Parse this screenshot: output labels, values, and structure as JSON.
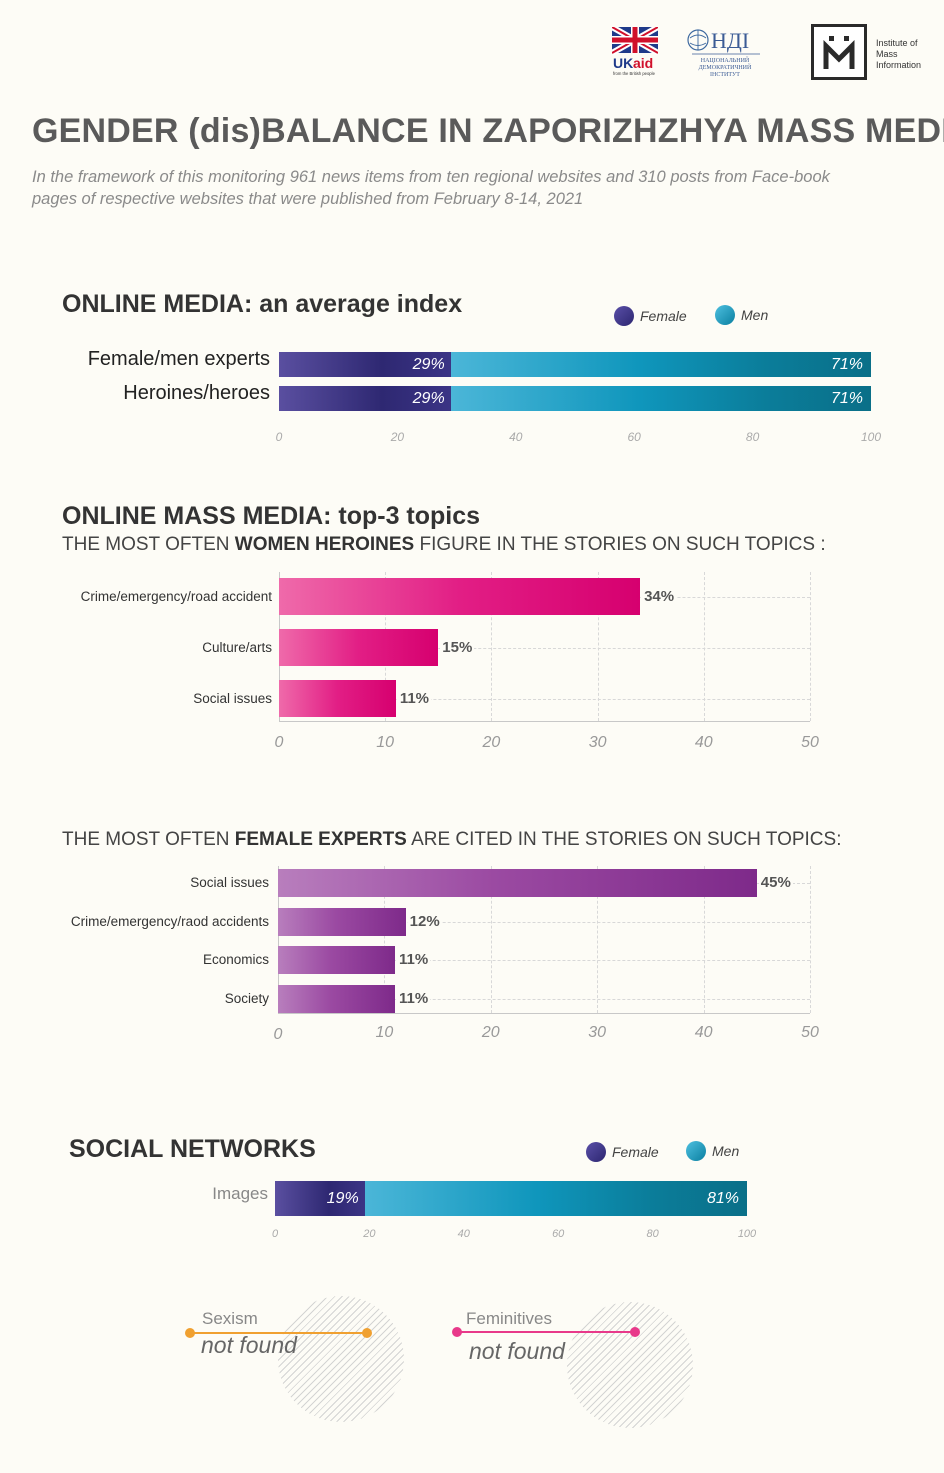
{
  "header": {
    "logo_ukaid_text": "UKaid",
    "logo_ukaid_sub": "from the British people",
    "logo_ndi_text": "НДІ",
    "logo_ndi_sub": "НАЦІОНАЛЬНИЙ ДЕМОКРАТИЧНИЙ ІНСТИТУТ",
    "logo_imi_text": "Institute of Mass Information"
  },
  "title": "GENDER (dis)BALANCE IN ZAPORIZHZHYA MASS MEDIA",
  "intro": "In the framework of this monitoring 961 news items from ten regional websites and 310 posts from Face-book pages of respective websites that were published from February 8-14, 2021",
  "colors": {
    "female": "#2e2872",
    "men": "#0f96bc",
    "pink": "#e21e85",
    "purple": "#8e3b97",
    "sexism_line": "#f0a030",
    "feminitives_line": "#e8398a"
  },
  "legend": {
    "female": "Female",
    "men": "Men"
  },
  "chart_data": [
    {
      "type": "bar",
      "orientation": "horizontal-stacked",
      "title": "ONLINE MEDIA: an average index",
      "categories": [
        "Female/men experts",
        "Heroines/heroes"
      ],
      "series": [
        {
          "name": "Female",
          "values": [
            29,
            29
          ],
          "labels": [
            "29%",
            "29%"
          ]
        },
        {
          "name": "Men",
          "values": [
            71,
            71
          ],
          "labels": [
            "71%",
            "71%"
          ]
        }
      ],
      "xlim": [
        0,
        100
      ],
      "ticks": [
        "0",
        "20",
        "40",
        "60",
        "80",
        "100"
      ]
    },
    {
      "type": "bar",
      "orientation": "horizontal",
      "title": "ONLINE MASS MEDIA: top-3 topics",
      "subtitle_pre": "THE MOST OFTEN ",
      "subtitle_bold": "WOMEN HEROINES",
      "subtitle_post": " FIGURE IN THE STORIES ON SUCH TOPICS :",
      "categories": [
        "Crime/emergency/road accident",
        "Culture/arts",
        "Social issues"
      ],
      "values": [
        34,
        15,
        11
      ],
      "labels": [
        "34%",
        "15%",
        "11%"
      ],
      "xlim": [
        0,
        50
      ],
      "ticks": [
        "0",
        "10",
        "20",
        "30",
        "40",
        "50"
      ],
      "grid": true
    },
    {
      "type": "bar",
      "orientation": "horizontal",
      "subtitle_pre": "THE MOST OFTEN ",
      "subtitle_bold": "FEMALE EXPERTS",
      "subtitle_post": " ARE CITED IN THE STORIES ON SUCH TOPICS:",
      "categories": [
        "Social issues",
        "Crime/emergency/raod accidents",
        "Economics",
        "Society"
      ],
      "values": [
        45,
        12,
        11,
        11
      ],
      "labels": [
        "45%",
        "12%",
        "11%",
        "11%"
      ],
      "xlim": [
        0,
        50
      ],
      "ticks": [
        "0",
        "10",
        "20",
        "30",
        "40",
        "50"
      ],
      "grid": true
    },
    {
      "type": "bar",
      "orientation": "horizontal-stacked",
      "title": "SOCIAL NETWORKS",
      "categories": [
        "Images"
      ],
      "series": [
        {
          "name": "Female",
          "values": [
            19
          ],
          "labels": [
            "19%"
          ]
        },
        {
          "name": "Men",
          "values": [
            81
          ],
          "labels": [
            "81%"
          ]
        }
      ],
      "xlim": [
        0,
        100
      ],
      "ticks": [
        "0",
        "20",
        "40",
        "60",
        "80",
        "100"
      ]
    }
  ],
  "notes": [
    {
      "title": "Sexism",
      "value": "not found"
    },
    {
      "title": "Feminitives",
      "value": "not found"
    }
  ]
}
